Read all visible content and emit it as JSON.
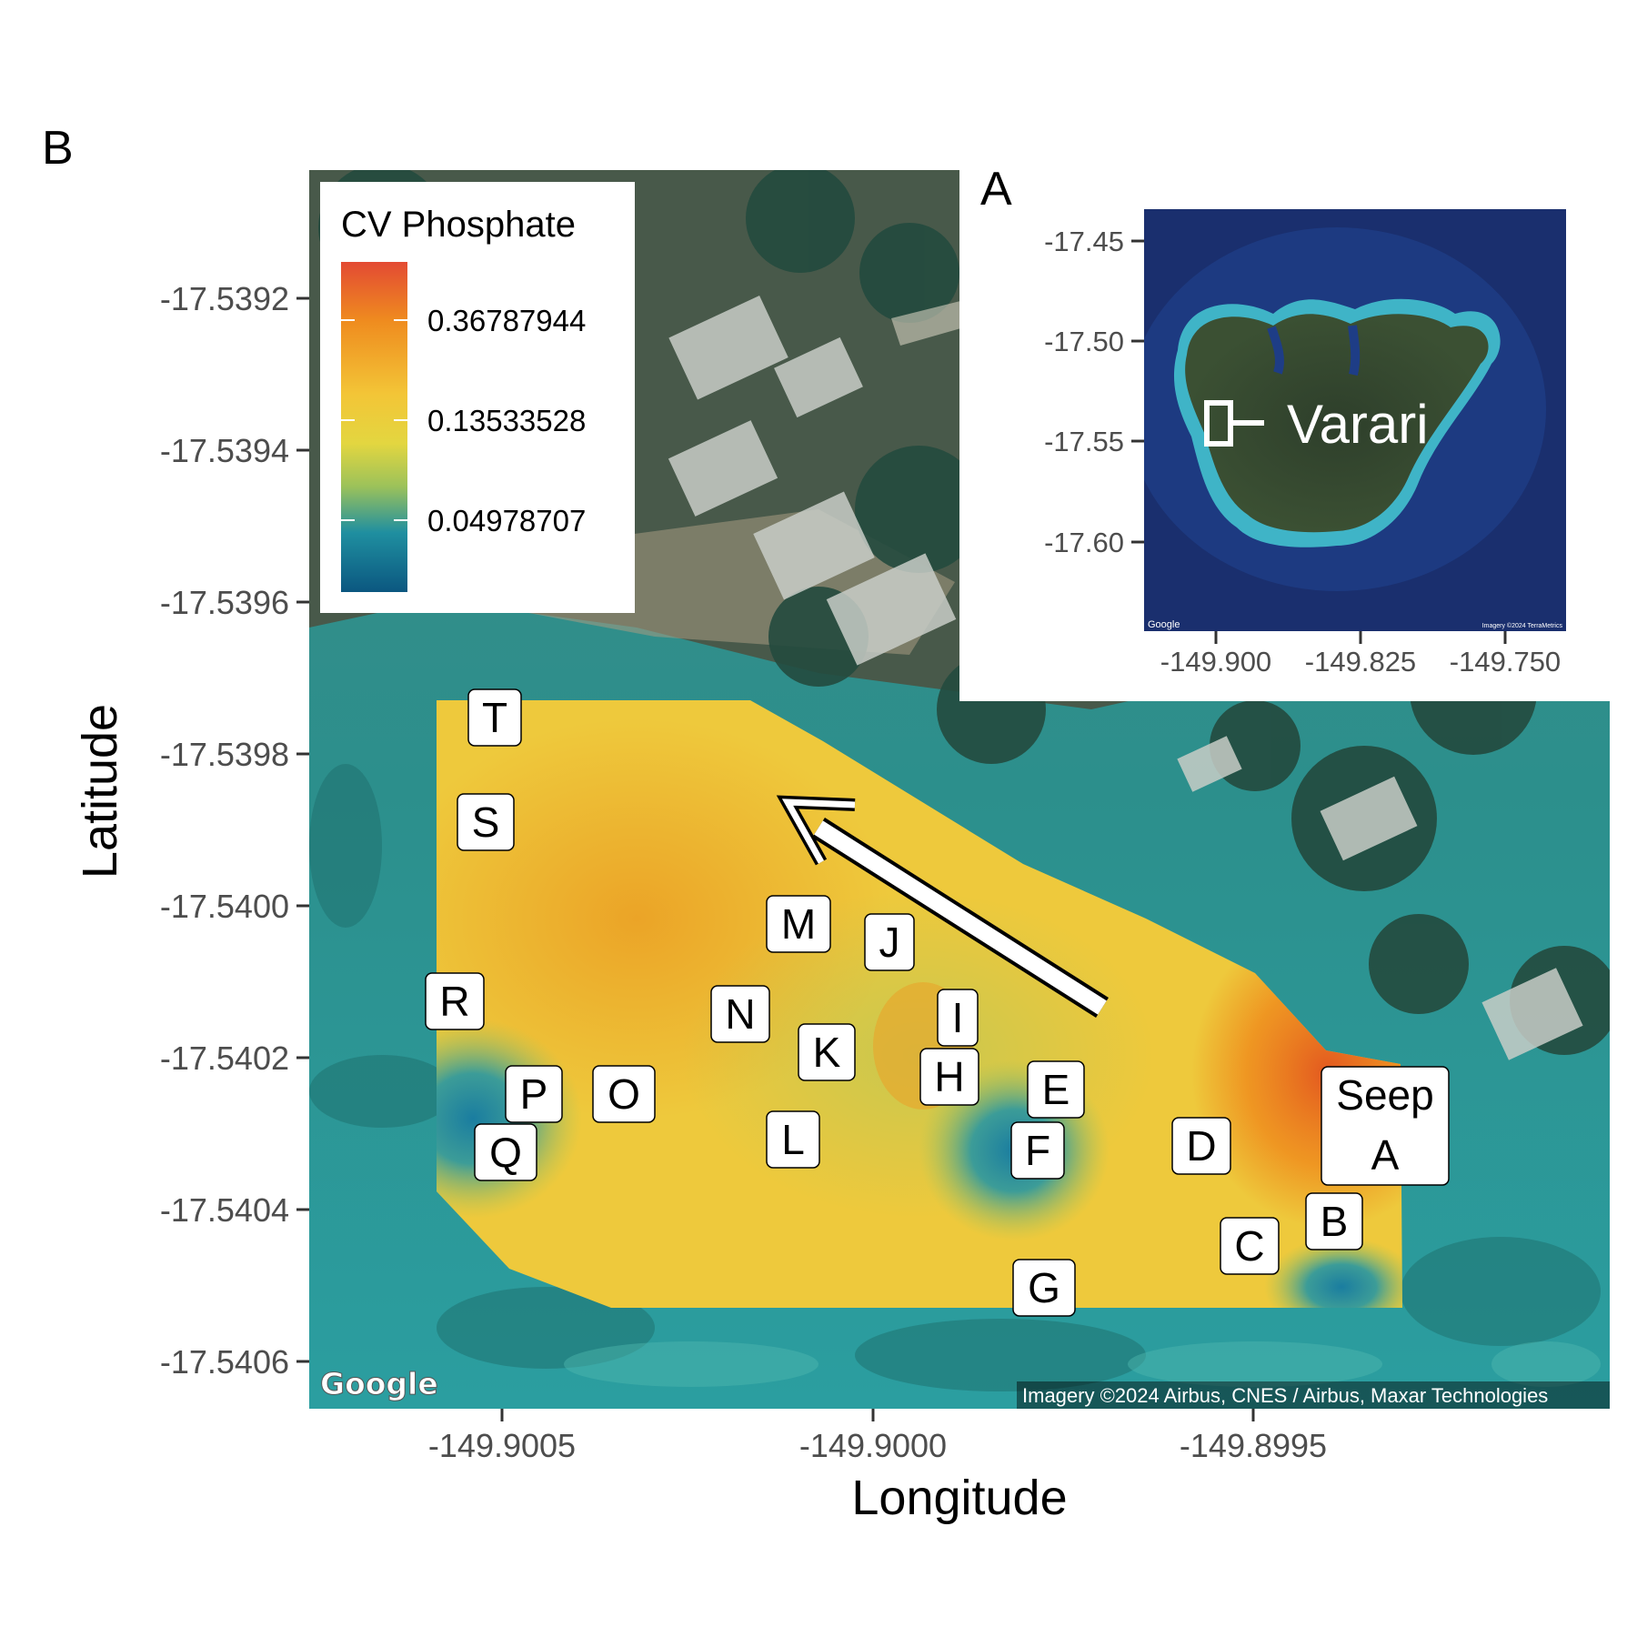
{
  "panel_b_tag": "B",
  "panel_a_tag": "A",
  "main_map": {
    "xlabel": "Longitude",
    "ylabel": "Latitude",
    "x_ticks": [
      "-149.9005",
      "-149.9000",
      "-149.8995"
    ],
    "y_ticks": [
      "-17.5392",
      "-17.5394",
      "-17.5396",
      "-17.5398",
      "-17.5400",
      "-17.5402",
      "-17.5404",
      "-17.5406"
    ],
    "google_logo": "Google",
    "attribution": "Imagery ©2024 Airbus, CNES / Airbus, Maxar Technologies",
    "basemap": "satellite imagery",
    "flow_arrow": "white arrow pointing north-west"
  },
  "legend": {
    "title": "CV Phosphate",
    "values": [
      "0.36787944",
      "0.13533528",
      "0.04978707"
    ],
    "colors": [
      "#e34a33",
      "#ef8c1f",
      "#f3c537",
      "#e3d640",
      "#9cc25a",
      "#1f8fa0",
      "#0b5780"
    ]
  },
  "sites": [
    "T",
    "S",
    "M",
    "J",
    "R",
    "N",
    "I",
    "K",
    "H",
    "P",
    "O",
    "E",
    "Seep",
    "A",
    "Q",
    "L",
    "F",
    "D",
    "B",
    "C",
    "G"
  ],
  "inset": {
    "label": "Varari",
    "x_ticks": [
      "-149.900",
      "-149.825",
      "-149.750"
    ],
    "y_ticks": [
      "-17.45",
      "-17.50",
      "-17.55",
      "-17.60"
    ],
    "google_logo": "Google",
    "attribution": "Imagery ©2024 TerraMetrics"
  }
}
